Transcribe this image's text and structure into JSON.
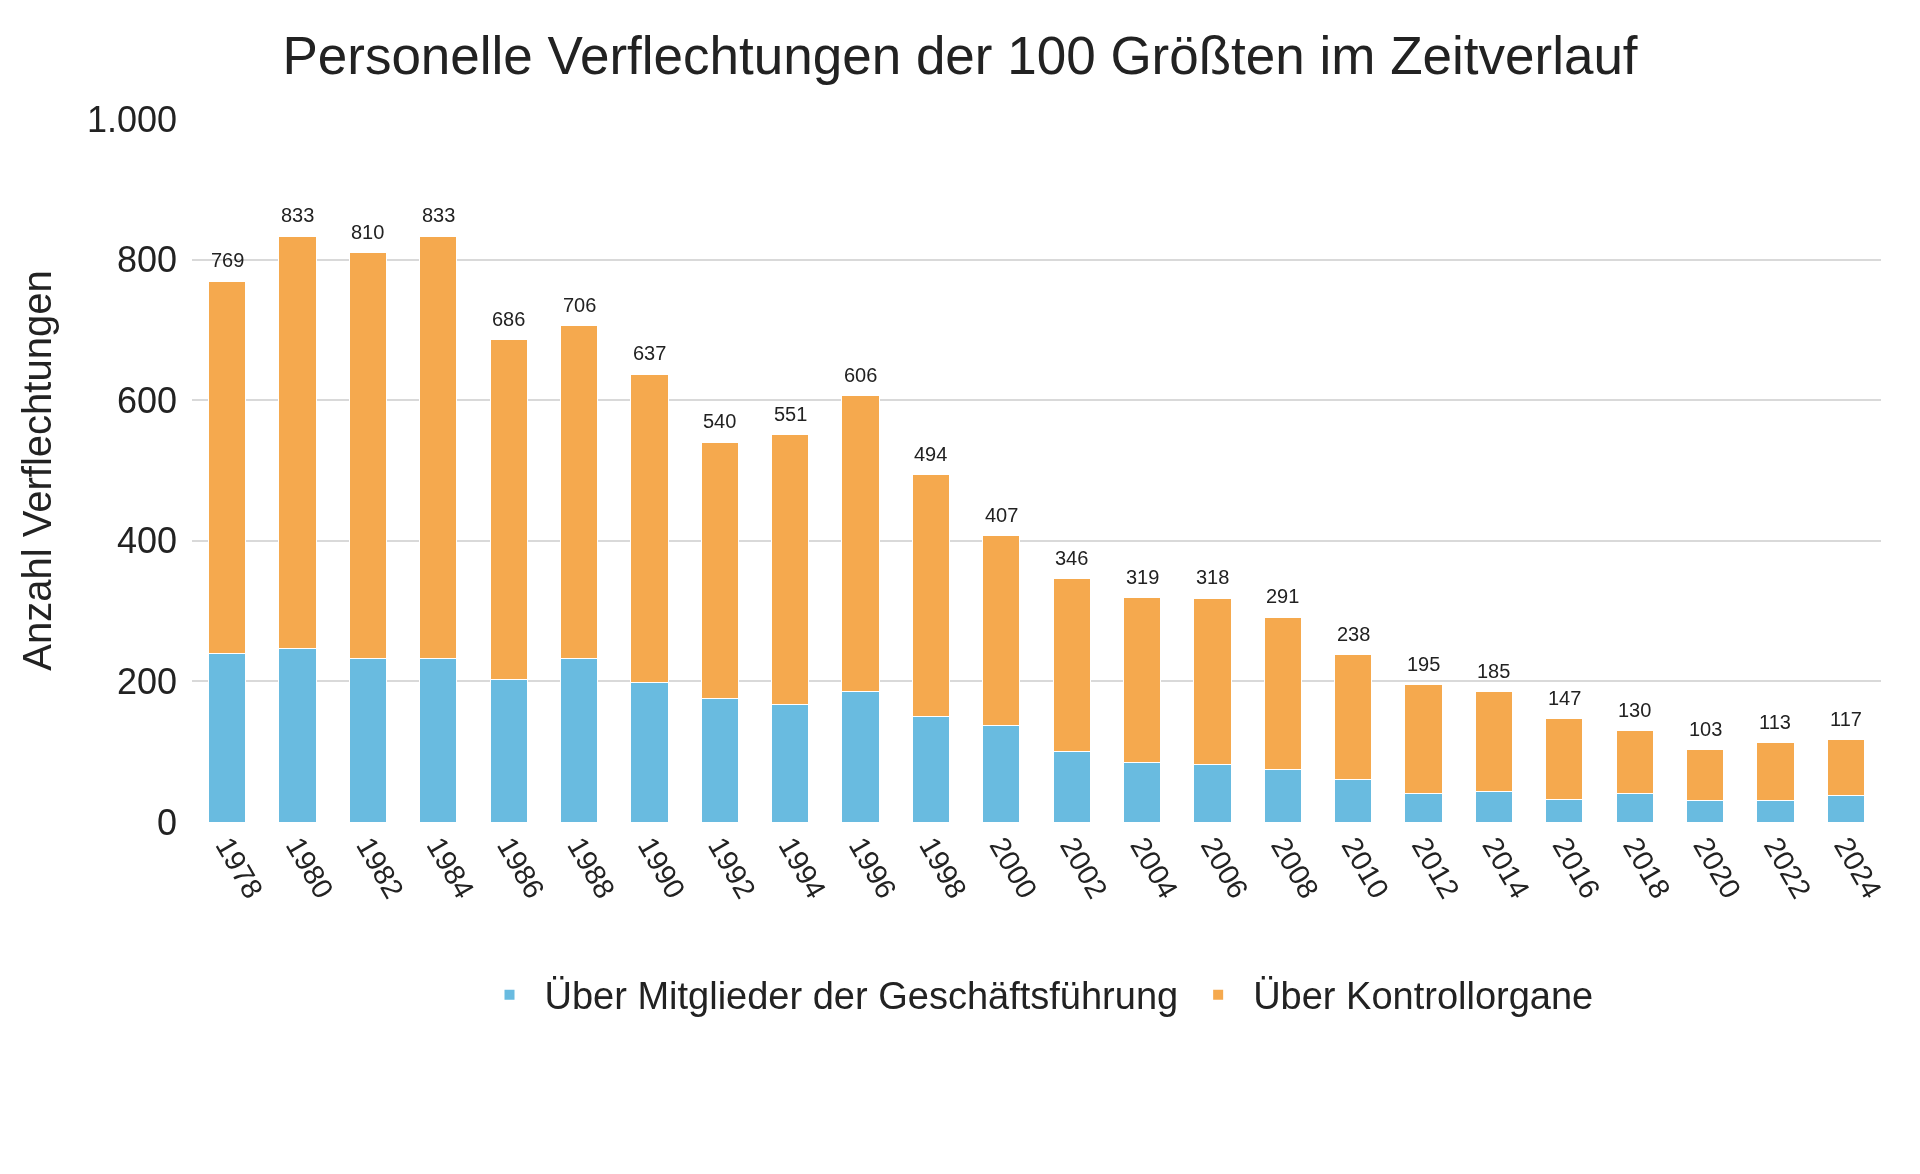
{
  "chart_data": {
    "type": "bar",
    "title": "Personelle Verflechtungen der 100 Größten im Zeitverlauf",
    "ylabel": "Anzahl Verflechtungen",
    "categories": [
      "1978",
      "1980",
      "1982",
      "1984",
      "1986",
      "1988",
      "1990",
      "1992",
      "1994",
      "1996",
      "1998",
      "2000",
      "2002",
      "2004",
      "2006",
      "2008",
      "2010",
      "2012",
      "2014",
      "2016",
      "2018",
      "2020",
      "2022",
      "2024"
    ],
    "series": [
      {
        "name": "Über Mitglieder der Geschäftsführung",
        "color": "#69bbe0",
        "values": [
          240,
          247,
          233,
          232,
          203,
          233,
          198,
          176,
          167,
          185,
          150,
          137,
          101,
          85,
          82,
          74,
          60,
          40,
          44,
          32,
          40,
          30,
          30,
          37
        ]
      },
      {
        "name": "Über Kontrollorgane",
        "color": "#f5a94e",
        "values": [
          529,
          586,
          577,
          601,
          483,
          473,
          439,
          364,
          384,
          421,
          344,
          270,
          245,
          234,
          236,
          217,
          178,
          155,
          141,
          115,
          90,
          73,
          83,
          80
        ]
      }
    ],
    "stacked": true,
    "totals": [
      "769",
      "833",
      "810",
      "833",
      "686",
      "706",
      "637",
      "540",
      "551",
      "606",
      "494",
      "407",
      "346",
      "319",
      "318",
      "291",
      "238",
      "195",
      "185",
      "147",
      "130",
      "103",
      "113",
      "117"
    ],
    "ylim": [
      0,
      1000
    ],
    "yticks": [
      0,
      200,
      400,
      600,
      800,
      {
        "value": 1000,
        "label": "1.000"
      }
    ],
    "grid": "y",
    "legend": "bottom"
  }
}
